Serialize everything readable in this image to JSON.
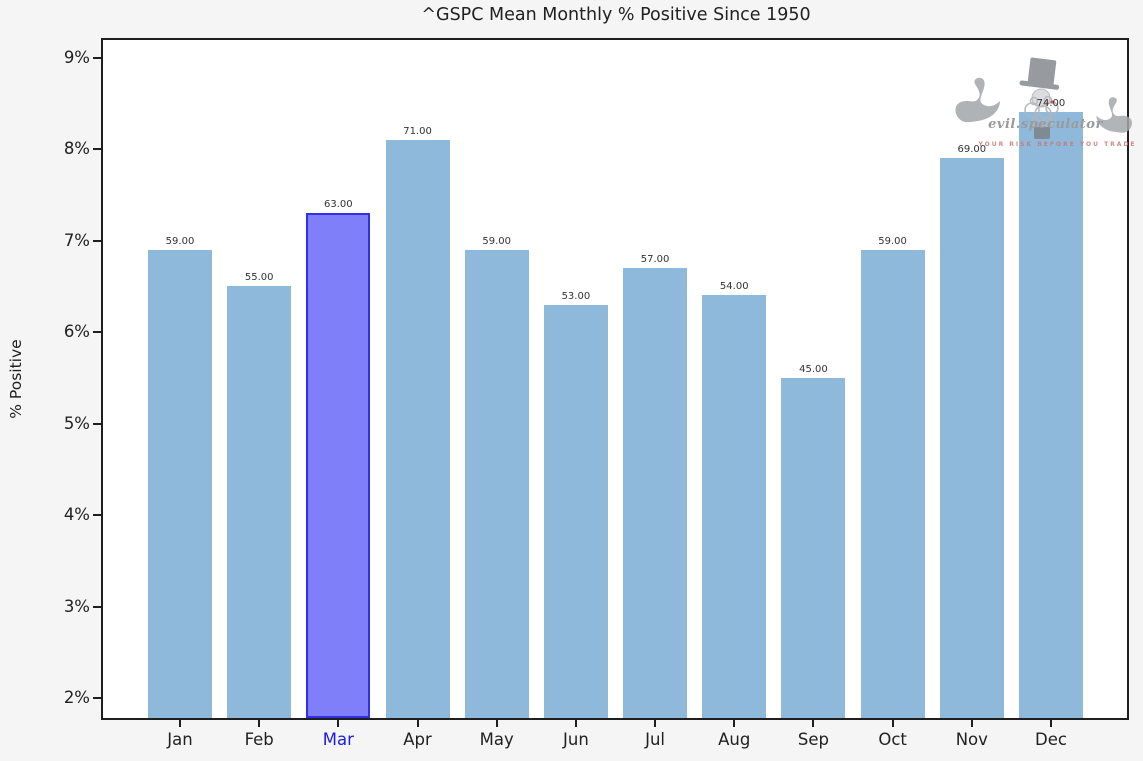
{
  "title": "^GSPC Mean Monthly % Positive Since 1950",
  "axes": {
    "ylabel": "% Positive",
    "ytick_labels": [
      "2%",
      "3%",
      "4%",
      "5%",
      "6%",
      "7%",
      "8%",
      "9%"
    ],
    "ytick_values": [
      2,
      3,
      4,
      5,
      6,
      7,
      8,
      9
    ]
  },
  "chart_data": {
    "type": "bar",
    "title": "^GSPC Mean Monthly % Positive Since 1950",
    "xlabel": "",
    "ylabel": "% Positive",
    "categories": [
      "Jan",
      "Feb",
      "Mar",
      "Apr",
      "May",
      "Jun",
      "Jul",
      "Aug",
      "Sep",
      "Oct",
      "Nov",
      "Dec"
    ],
    "values": [
      59,
      55,
      63,
      71,
      59,
      53,
      57,
      54,
      45,
      59,
      69,
      74
    ],
    "bar_value_labels": [
      "59.00",
      "55.00",
      "63.00",
      "71.00",
      "59.00",
      "53.00",
      "57.00",
      "54.00",
      "45.00",
      "59.00",
      "69.00",
      "74.00"
    ],
    "bar_axis_heights_pct": [
      6.9,
      6.5,
      7.3,
      8.1,
      6.9,
      6.3,
      6.7,
      6.4,
      5.5,
      6.9,
      7.9,
      8.4
    ],
    "highlight_index": 2,
    "highlight_category": "Mar",
    "ytick_labels": [
      "2%",
      "3%",
      "4%",
      "5%",
      "6%",
      "7%",
      "8%",
      "9%"
    ],
    "ylim": [
      1.8,
      9.2
    ],
    "grid": false,
    "legend": null,
    "colors": {
      "bar_fill": "#8fb9db",
      "highlight_fill": "#7f7ffa",
      "highlight_edge": "#3030e8",
      "highlight_tick_label": "#1a1aee",
      "figure_bg": "#f5f5f5",
      "plot_bg": "#ffffff",
      "spine": "#1f1f1f"
    }
  },
  "watermark": {
    "brand": "evil.speculator",
    "tagline": "YOUR RISK BEFORE YOU TRADE",
    "icons": [
      "swan-left",
      "top-hat-gentleman",
      "swan-right"
    ]
  }
}
